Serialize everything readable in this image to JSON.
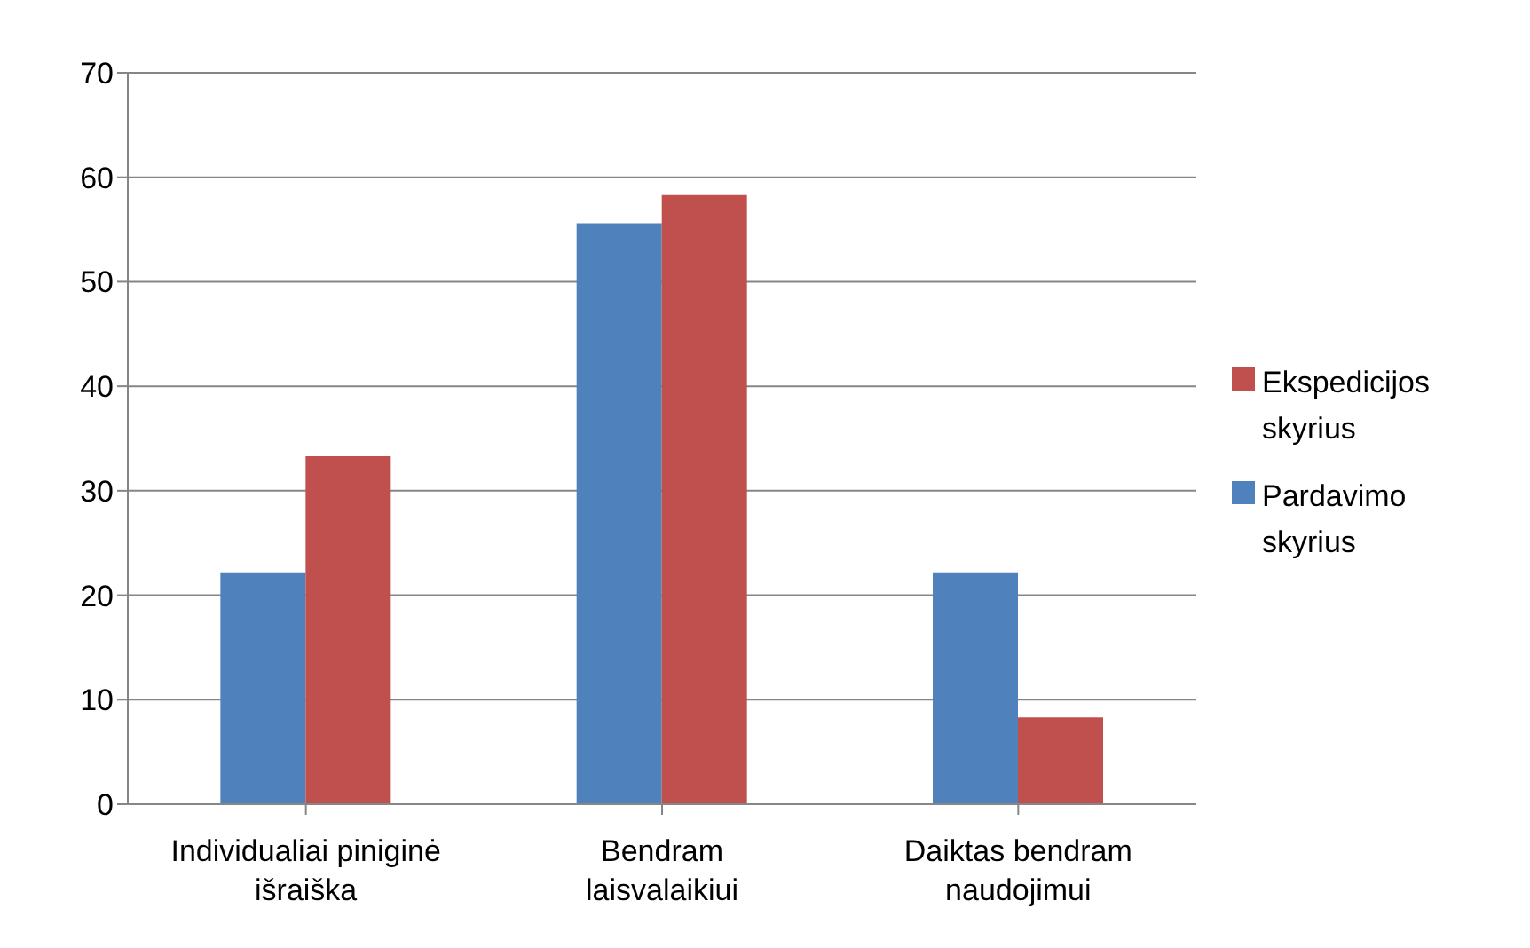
{
  "chart_data": {
    "type": "bar",
    "categories": [
      "Individualiai piniginė išraiška",
      "Bendram laisvalaikiui",
      "Daiktas bendram naudojimui"
    ],
    "series": [
      {
        "name": "Pardavimo skyrius",
        "color": "#4f81bd",
        "values": [
          22.2,
          55.6,
          22.2
        ]
      },
      {
        "name": "Ekspedicijos skyrius",
        "color": "#c0504d",
        "values": [
          33.3,
          58.3,
          8.3
        ]
      }
    ],
    "ylim": [
      0,
      70
    ],
    "yticks": [
      0,
      10,
      20,
      30,
      40,
      50,
      60,
      70
    ],
    "grid": "y",
    "legend": "right"
  }
}
